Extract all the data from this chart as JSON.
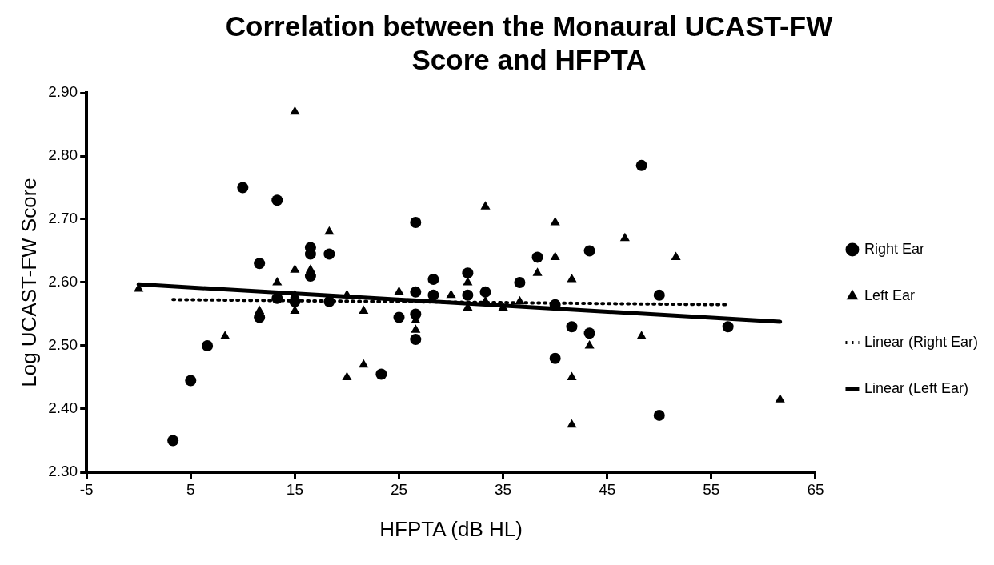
{
  "chart_data": {
    "type": "scatter",
    "title": "Correlation between the Monaural UCAST-FW Score and HFPTA",
    "xlabel": "HFPTA (dB HL)",
    "ylabel": "Log UCAST-FW Score",
    "xlim": [
      -5,
      65
    ],
    "xticks": [
      -5,
      5,
      15,
      25,
      35,
      45,
      55,
      65
    ],
    "ylim": [
      2.3,
      2.9
    ],
    "yticks": [
      {
        "value": 2.3,
        "label": "2.30"
      },
      {
        "value": 2.4,
        "label": "2.40"
      },
      {
        "value": 2.5,
        "label": "2.50"
      },
      {
        "value": 2.6,
        "label": "2.60"
      },
      {
        "value": 2.7,
        "label": "2.70"
      },
      {
        "value": 2.8,
        "label": "2.80"
      },
      {
        "value": 2.9,
        "label": "2.90"
      }
    ],
    "grid": false,
    "legend": "right",
    "series": [
      {
        "name": "Right Ear",
        "color": "#000000",
        "marker": "circle",
        "x": [
          10,
          13.3,
          11.6,
          16.5,
          16.5,
          18.3,
          16.5,
          13.3,
          15,
          18.3,
          11.6,
          6.6,
          5,
          3.3,
          23.3,
          25,
          26.6,
          26.6,
          26.6,
          26.6,
          28.3,
          28.3,
          31.6,
          31.6,
          33.3,
          36.6,
          38.3,
          40,
          40,
          48.3,
          43.3,
          41.6,
          43.3,
          50,
          50,
          56.6
        ],
        "values": [
          2.75,
          2.73,
          2.63,
          2.655,
          2.645,
          2.645,
          2.61,
          2.575,
          2.57,
          2.57,
          2.545,
          2.5,
          2.445,
          2.35,
          2.455,
          2.545,
          2.695,
          2.585,
          2.55,
          2.51,
          2.605,
          2.58,
          2.615,
          2.58,
          2.585,
          2.6,
          2.64,
          2.565,
          2.48,
          2.785,
          2.65,
          2.53,
          2.52,
          2.58,
          2.39,
          2.53
        ]
      },
      {
        "name": "Left Ear",
        "color": "#000000",
        "marker": "triangle",
        "x": [
          0,
          15,
          18.3,
          15,
          13.3,
          11.6,
          15,
          8.3,
          16.5,
          15,
          20,
          21.6,
          20,
          21.6,
          25,
          26.6,
          26.6,
          30,
          31.6,
          31.6,
          33.3,
          33.3,
          35,
          36.6,
          38.3,
          40,
          40,
          41.6,
          41.6,
          41.6,
          43.3,
          46.7,
          48.3,
          51.6,
          61.6
        ],
        "values": [
          2.59,
          2.87,
          2.68,
          2.62,
          2.6,
          2.555,
          2.555,
          2.515,
          2.62,
          2.58,
          2.58,
          2.555,
          2.45,
          2.47,
          2.585,
          2.54,
          2.525,
          2.58,
          2.6,
          2.56,
          2.72,
          2.57,
          2.56,
          2.57,
          2.615,
          2.695,
          2.64,
          2.605,
          2.45,
          2.375,
          2.5,
          2.67,
          2.515,
          2.64,
          2.415
        ]
      },
      {
        "name": "Linear (Right Ear)",
        "type": "line",
        "color": "#000000",
        "marker": "none",
        "line_style": "dotted",
        "x": [
          3.3,
          56.6
        ],
        "values": [
          2.573,
          2.565
        ]
      },
      {
        "name": "Linear (Left Ear)",
        "type": "line",
        "color": "#000000",
        "marker": "none",
        "line_style": "solid",
        "x": [
          0,
          61.6
        ],
        "values": [
          2.597,
          2.538
        ]
      }
    ]
  }
}
